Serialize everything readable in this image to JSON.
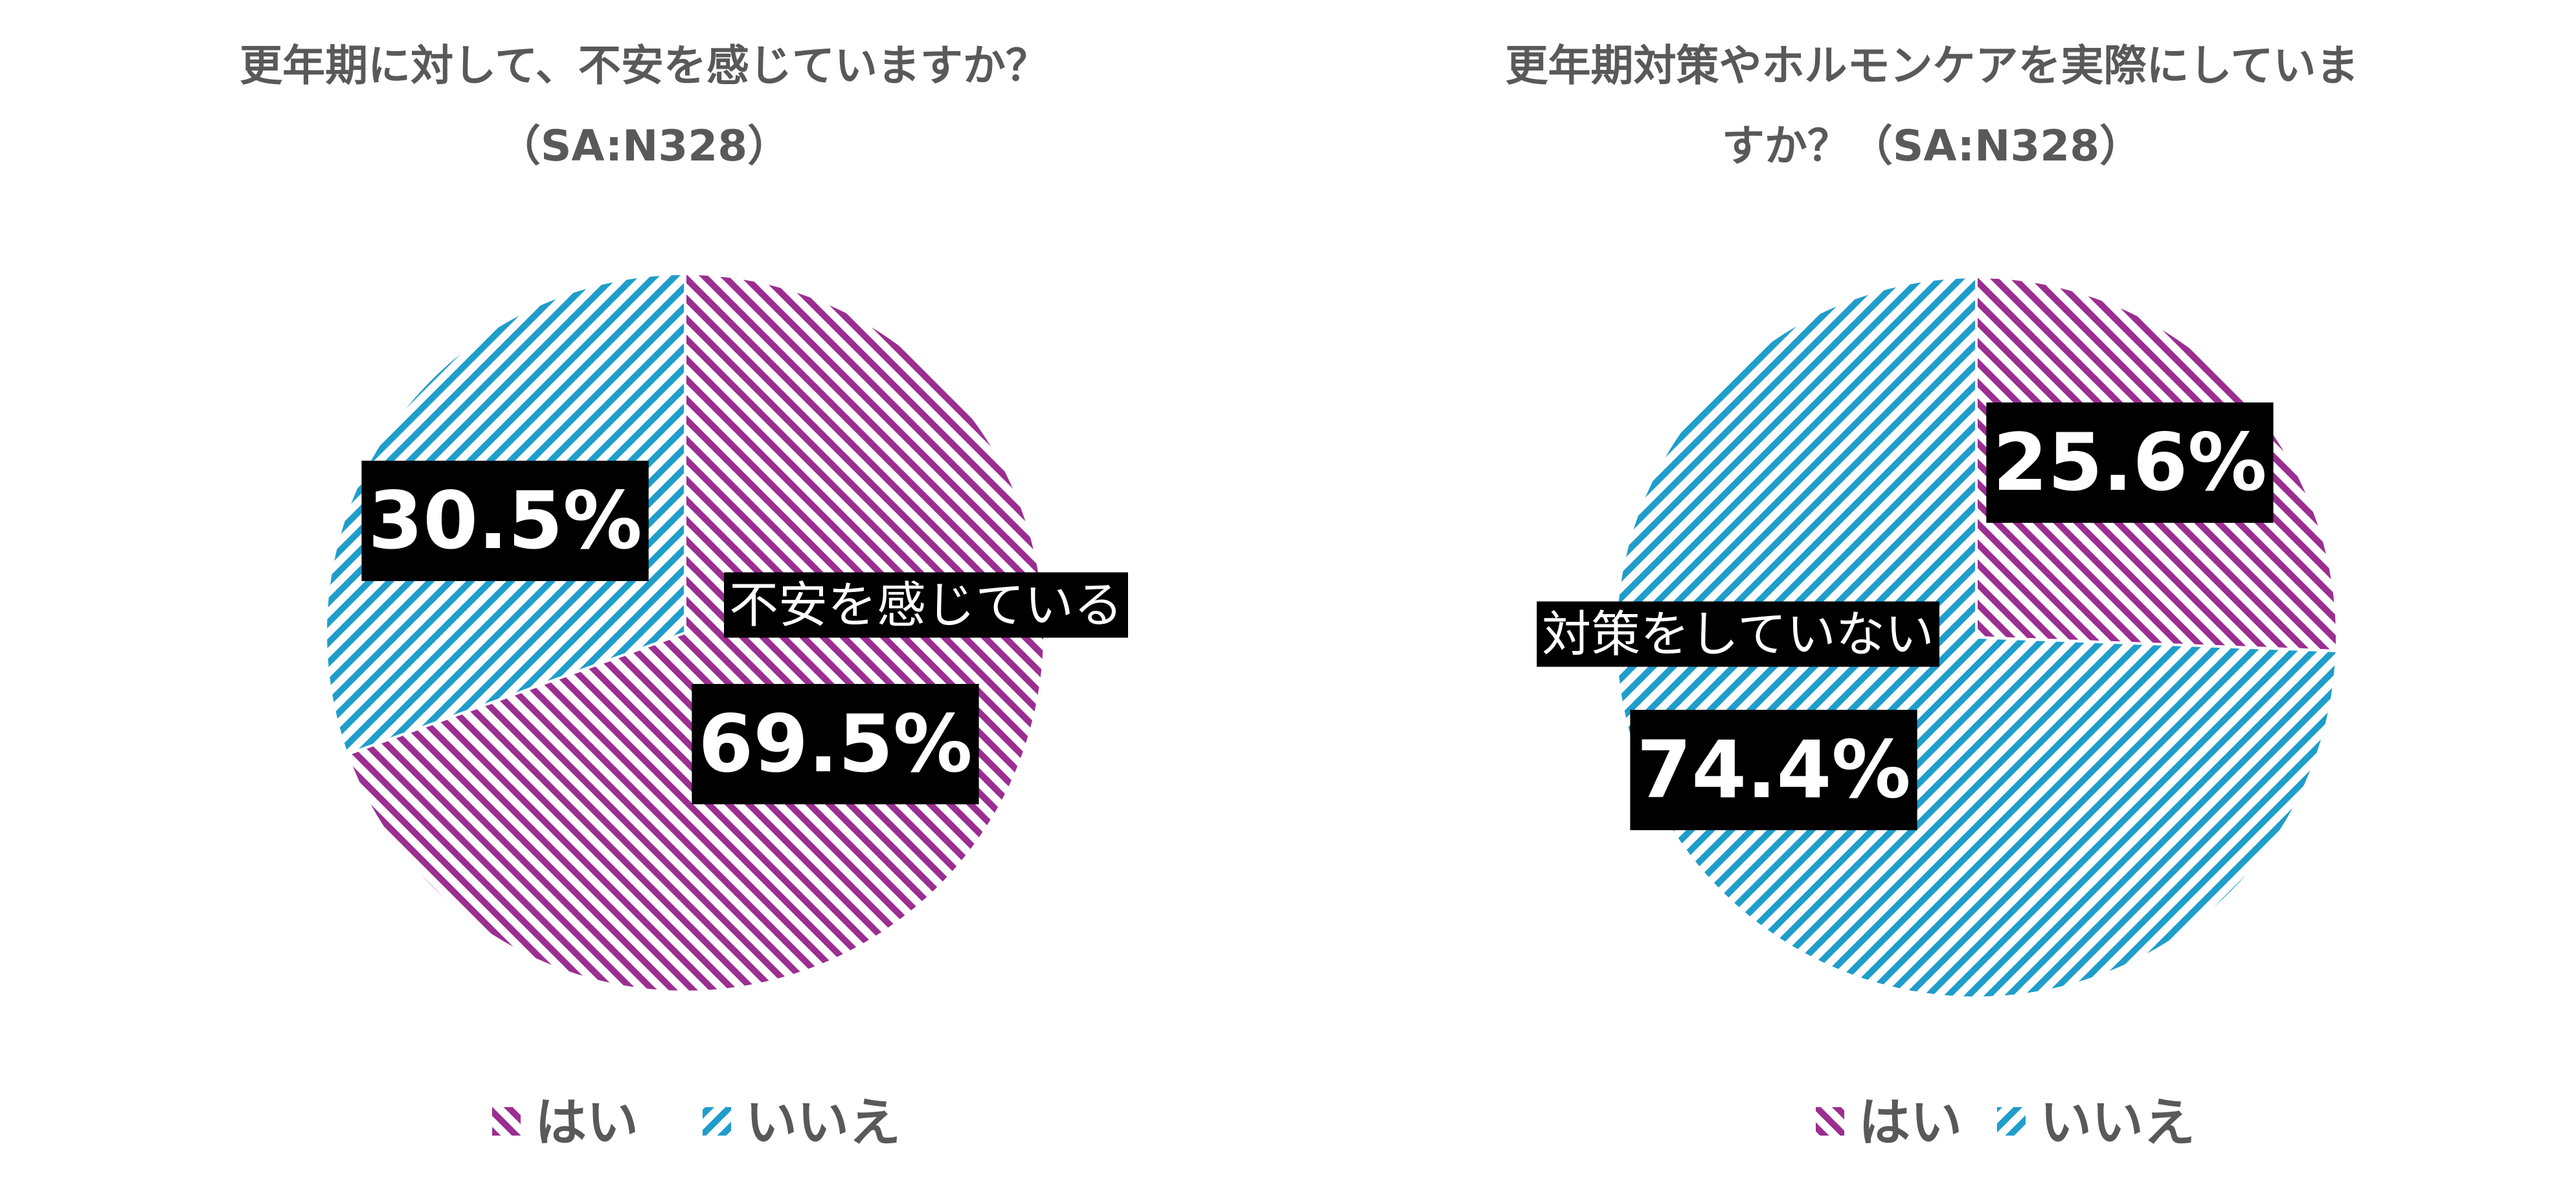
{
  "colors": {
    "yes": "#9b2e91",
    "no": "#1f9dcb",
    "title": "#595959",
    "label_bg": "#000000",
    "label_fg": "#ffffff"
  },
  "chart_data": [
    {
      "type": "pie",
      "title_lines": [
        "更年期に対して、不安を感じていますか？",
        "（SA:N328）"
      ],
      "categories": [
        "はい",
        "いいえ"
      ],
      "values": [
        69.5,
        30.5
      ],
      "data_labels": [
        "69.5%",
        "30.5%"
      ],
      "annotation": "不安を感じている",
      "legend": [
        "はい",
        "いいえ"
      ],
      "legend_position": "bottom"
    },
    {
      "type": "pie",
      "title_lines": [
        "更年期対策やホルモンケアを実際にしていま",
        "すか？（SA:N328）"
      ],
      "categories": [
        "はい",
        "いいえ"
      ],
      "values": [
        25.6,
        74.4
      ],
      "data_labels": [
        "25.6%",
        "74.4%"
      ],
      "annotation": "対策をしていない",
      "legend": [
        "はい",
        "いいえ"
      ],
      "legend_position": "bottom"
    }
  ]
}
